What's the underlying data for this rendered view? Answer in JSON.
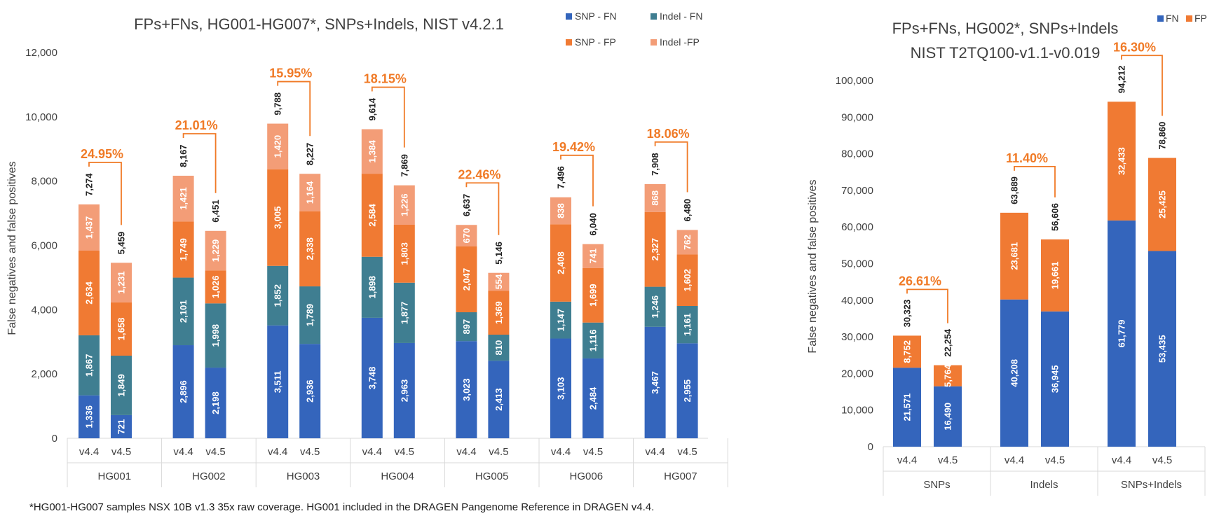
{
  "footnote": "*HG001-HG007 samples NSX 10B v1.3 35x raw coverage. HG001 included in the DRAGEN Pangenome Reference in DRAGEN v4.4.",
  "colors": {
    "snp_fn": "#3465BC",
    "indel_fn": "#3F7E91",
    "snp_fp": "#F07A33",
    "indel_fp": "#F39D77",
    "fn": "#3465BC",
    "fp": "#F07A33",
    "annot": "#F07A26",
    "axis": "#D9D9D9"
  },
  "chart_data": [
    {
      "type": "bar",
      "stacked": true,
      "title": "FPs+FNs, HG001-HG007*, SNPs+Indels, NIST v4.2.1",
      "ylabel": "False negatives and false positives",
      "ylim": [
        0,
        12000
      ],
      "yticks": [
        0,
        2000,
        4000,
        6000,
        8000,
        10000,
        12000
      ],
      "ytick_labels": [
        "0",
        "2,000",
        "4,000",
        "6,000",
        "8,000",
        "10,000",
        "12,000"
      ],
      "legend": [
        "SNP - FN",
        "Indel - FN",
        "SNP - FP",
        "Indel -FP"
      ],
      "legend_position": "top-right",
      "groups": [
        "HG001",
        "HG002",
        "HG003",
        "HG004",
        "HG005",
        "HG006",
        "HG007"
      ],
      "versions": [
        "v4.4",
        "v4.5"
      ],
      "series": [
        {
          "name": "SNP - FN",
          "values": [
            [
              1336,
              721
            ],
            [
              2896,
              2198
            ],
            [
              3511,
              2936
            ],
            [
              3748,
              2963
            ],
            [
              3023,
              2413
            ],
            [
              3103,
              2484
            ],
            [
              3467,
              2955
            ]
          ],
          "labels": [
            [
              "1,336",
              "721"
            ],
            [
              "2,896",
              "2,198"
            ],
            [
              "3,511",
              "2,936"
            ],
            [
              "3,748",
              "2,963"
            ],
            [
              "3,023",
              "2,413"
            ],
            [
              "3,103",
              "2,484"
            ],
            [
              "3,467",
              "2,955"
            ]
          ]
        },
        {
          "name": "Indel - FN",
          "values": [
            [
              1867,
              1849
            ],
            [
              2101,
              1998
            ],
            [
              1852,
              1789
            ],
            [
              1898,
              1877
            ],
            [
              897,
              810
            ],
            [
              1147,
              1116
            ],
            [
              1246,
              1161
            ]
          ],
          "labels": [
            [
              "1,867",
              "1,849"
            ],
            [
              "2,101",
              "1,998"
            ],
            [
              "1,852",
              "1,789"
            ],
            [
              "1,898",
              "1,877"
            ],
            [
              "897",
              "810"
            ],
            [
              "1,147",
              "1,116"
            ],
            [
              "1,246",
              "1,161"
            ]
          ]
        },
        {
          "name": "SNP - FP",
          "values": [
            [
              2634,
              1658
            ],
            [
              1749,
              1026
            ],
            [
              3005,
              2338
            ],
            [
              2584,
              1803
            ],
            [
              2047,
              1369
            ],
            [
              2408,
              1699
            ],
            [
              2327,
              1602
            ]
          ],
          "labels": [
            [
              "2,634",
              "1,658"
            ],
            [
              "1,749",
              "1,026"
            ],
            [
              "3,005",
              "2,338"
            ],
            [
              "2,584",
              "1,803"
            ],
            [
              "2,047",
              "1,369"
            ],
            [
              "2,408",
              "1,699"
            ],
            [
              "2,327",
              "1,602"
            ]
          ]
        },
        {
          "name": "Indel -FP",
          "values": [
            [
              1437,
              1231
            ],
            [
              1421,
              1229
            ],
            [
              1420,
              1164
            ],
            [
              1384,
              1226
            ],
            [
              670,
              554
            ],
            [
              838,
              741
            ],
            [
              868,
              762
            ]
          ],
          "labels": [
            [
              "1,437",
              "1,231"
            ],
            [
              "1,421",
              "1,229"
            ],
            [
              "1,420",
              "1,164"
            ],
            [
              "1,384",
              "1,226"
            ],
            [
              "670",
              "554"
            ],
            [
              "838",
              "741"
            ],
            [
              "868",
              "762"
            ]
          ]
        }
      ],
      "totals": [
        [
          7274,
          5459
        ],
        [
          8167,
          6451
        ],
        [
          9788,
          8227
        ],
        [
          9614,
          7869
        ],
        [
          6637,
          5146
        ],
        [
          7496,
          6040
        ],
        [
          7908,
          6480
        ]
      ],
      "total_labels": [
        [
          "7,274",
          "5,459"
        ],
        [
          "8,167",
          "6,451"
        ],
        [
          "9,788",
          "8,227"
        ],
        [
          "9,614",
          "7,869"
        ],
        [
          "6,637",
          "5,146"
        ],
        [
          "7,496",
          "6,040"
        ],
        [
          "7,908",
          "6,480"
        ]
      ],
      "reductions": [
        "24.95%",
        "21.01%",
        "15.95%",
        "18.15%",
        "22.46%",
        "19.42%",
        "18.06%"
      ]
    },
    {
      "type": "bar",
      "stacked": true,
      "title_lines": [
        "FPs+FNs, HG002*, SNPs+Indels",
        "NIST T2TQ100-v1.1-v0.019"
      ],
      "ylabel": "False negatives and false positives",
      "ylim": [
        0,
        100000
      ],
      "yticks": [
        0,
        10000,
        20000,
        30000,
        40000,
        50000,
        60000,
        70000,
        80000,
        90000,
        100000
      ],
      "ytick_labels": [
        "0",
        "10,000",
        "20,000",
        "30,000",
        "40,000",
        "50,000",
        "60,000",
        "70,000",
        "80,000",
        "90,000",
        "100,000"
      ],
      "legend": [
        "FN",
        "FP"
      ],
      "legend_position": "top-right",
      "groups": [
        "SNPs",
        "Indels",
        "SNPs+Indels"
      ],
      "versions": [
        "v4.4",
        "v4.5"
      ],
      "series": [
        {
          "name": "FN",
          "values": [
            [
              21571,
              16490
            ],
            [
              40208,
              36945
            ],
            [
              61779,
              53435
            ]
          ],
          "labels": [
            [
              "21,571",
              "16,490"
            ],
            [
              "40,208",
              "36,945"
            ],
            [
              "61,779",
              "53,435"
            ]
          ]
        },
        {
          "name": "FP",
          "values": [
            [
              8752,
              5764
            ],
            [
              23681,
              19661
            ],
            [
              32433,
              25425
            ]
          ],
          "labels": [
            [
              "8,752",
              "5,764"
            ],
            [
              "23,681",
              "19,661"
            ],
            [
              "32,433",
              "25,425"
            ]
          ]
        }
      ],
      "totals": [
        [
          30323,
          22254
        ],
        [
          63889,
          56606
        ],
        [
          94212,
          78860
        ]
      ],
      "total_labels": [
        [
          "30,323",
          "22,254"
        ],
        [
          "63,889",
          "56,606"
        ],
        [
          "94,212",
          "78,860"
        ]
      ],
      "reductions": [
        "26.61%",
        "11.40%",
        "16.30%"
      ]
    }
  ]
}
